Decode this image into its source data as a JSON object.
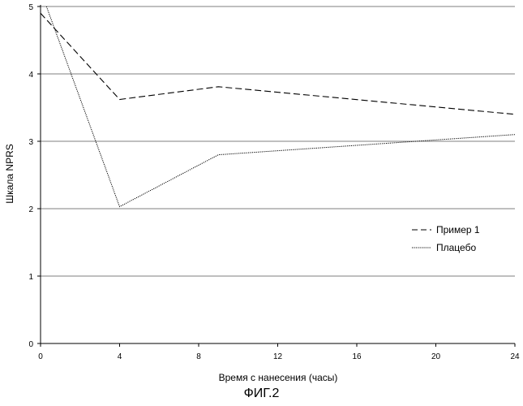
{
  "chart_data": {
    "type": "line",
    "xlabel": "Время с нанесения  (часы)",
    "ylabel": "Шкала NPRS",
    "xlim": [
      0,
      24
    ],
    "ylim": [
      0,
      5
    ],
    "x_ticks": [
      0,
      4,
      8,
      12,
      16,
      20,
      24
    ],
    "y_ticks": [
      0,
      1,
      2,
      3,
      4,
      5
    ],
    "grid": "horizontal",
    "legend_position": "right",
    "series": [
      {
        "name": "Пример 1",
        "style": "dashed",
        "x": [
          0,
          4,
          9,
          24
        ],
        "y": [
          4.9,
          3.62,
          3.81,
          3.4
        ]
      },
      {
        "name": "Плацебо",
        "style": "dotted",
        "x": [
          0.3,
          4,
          9,
          24
        ],
        "y": [
          5.0,
          2.03,
          2.8,
          3.1
        ]
      }
    ]
  },
  "caption": "ФИГ.2"
}
